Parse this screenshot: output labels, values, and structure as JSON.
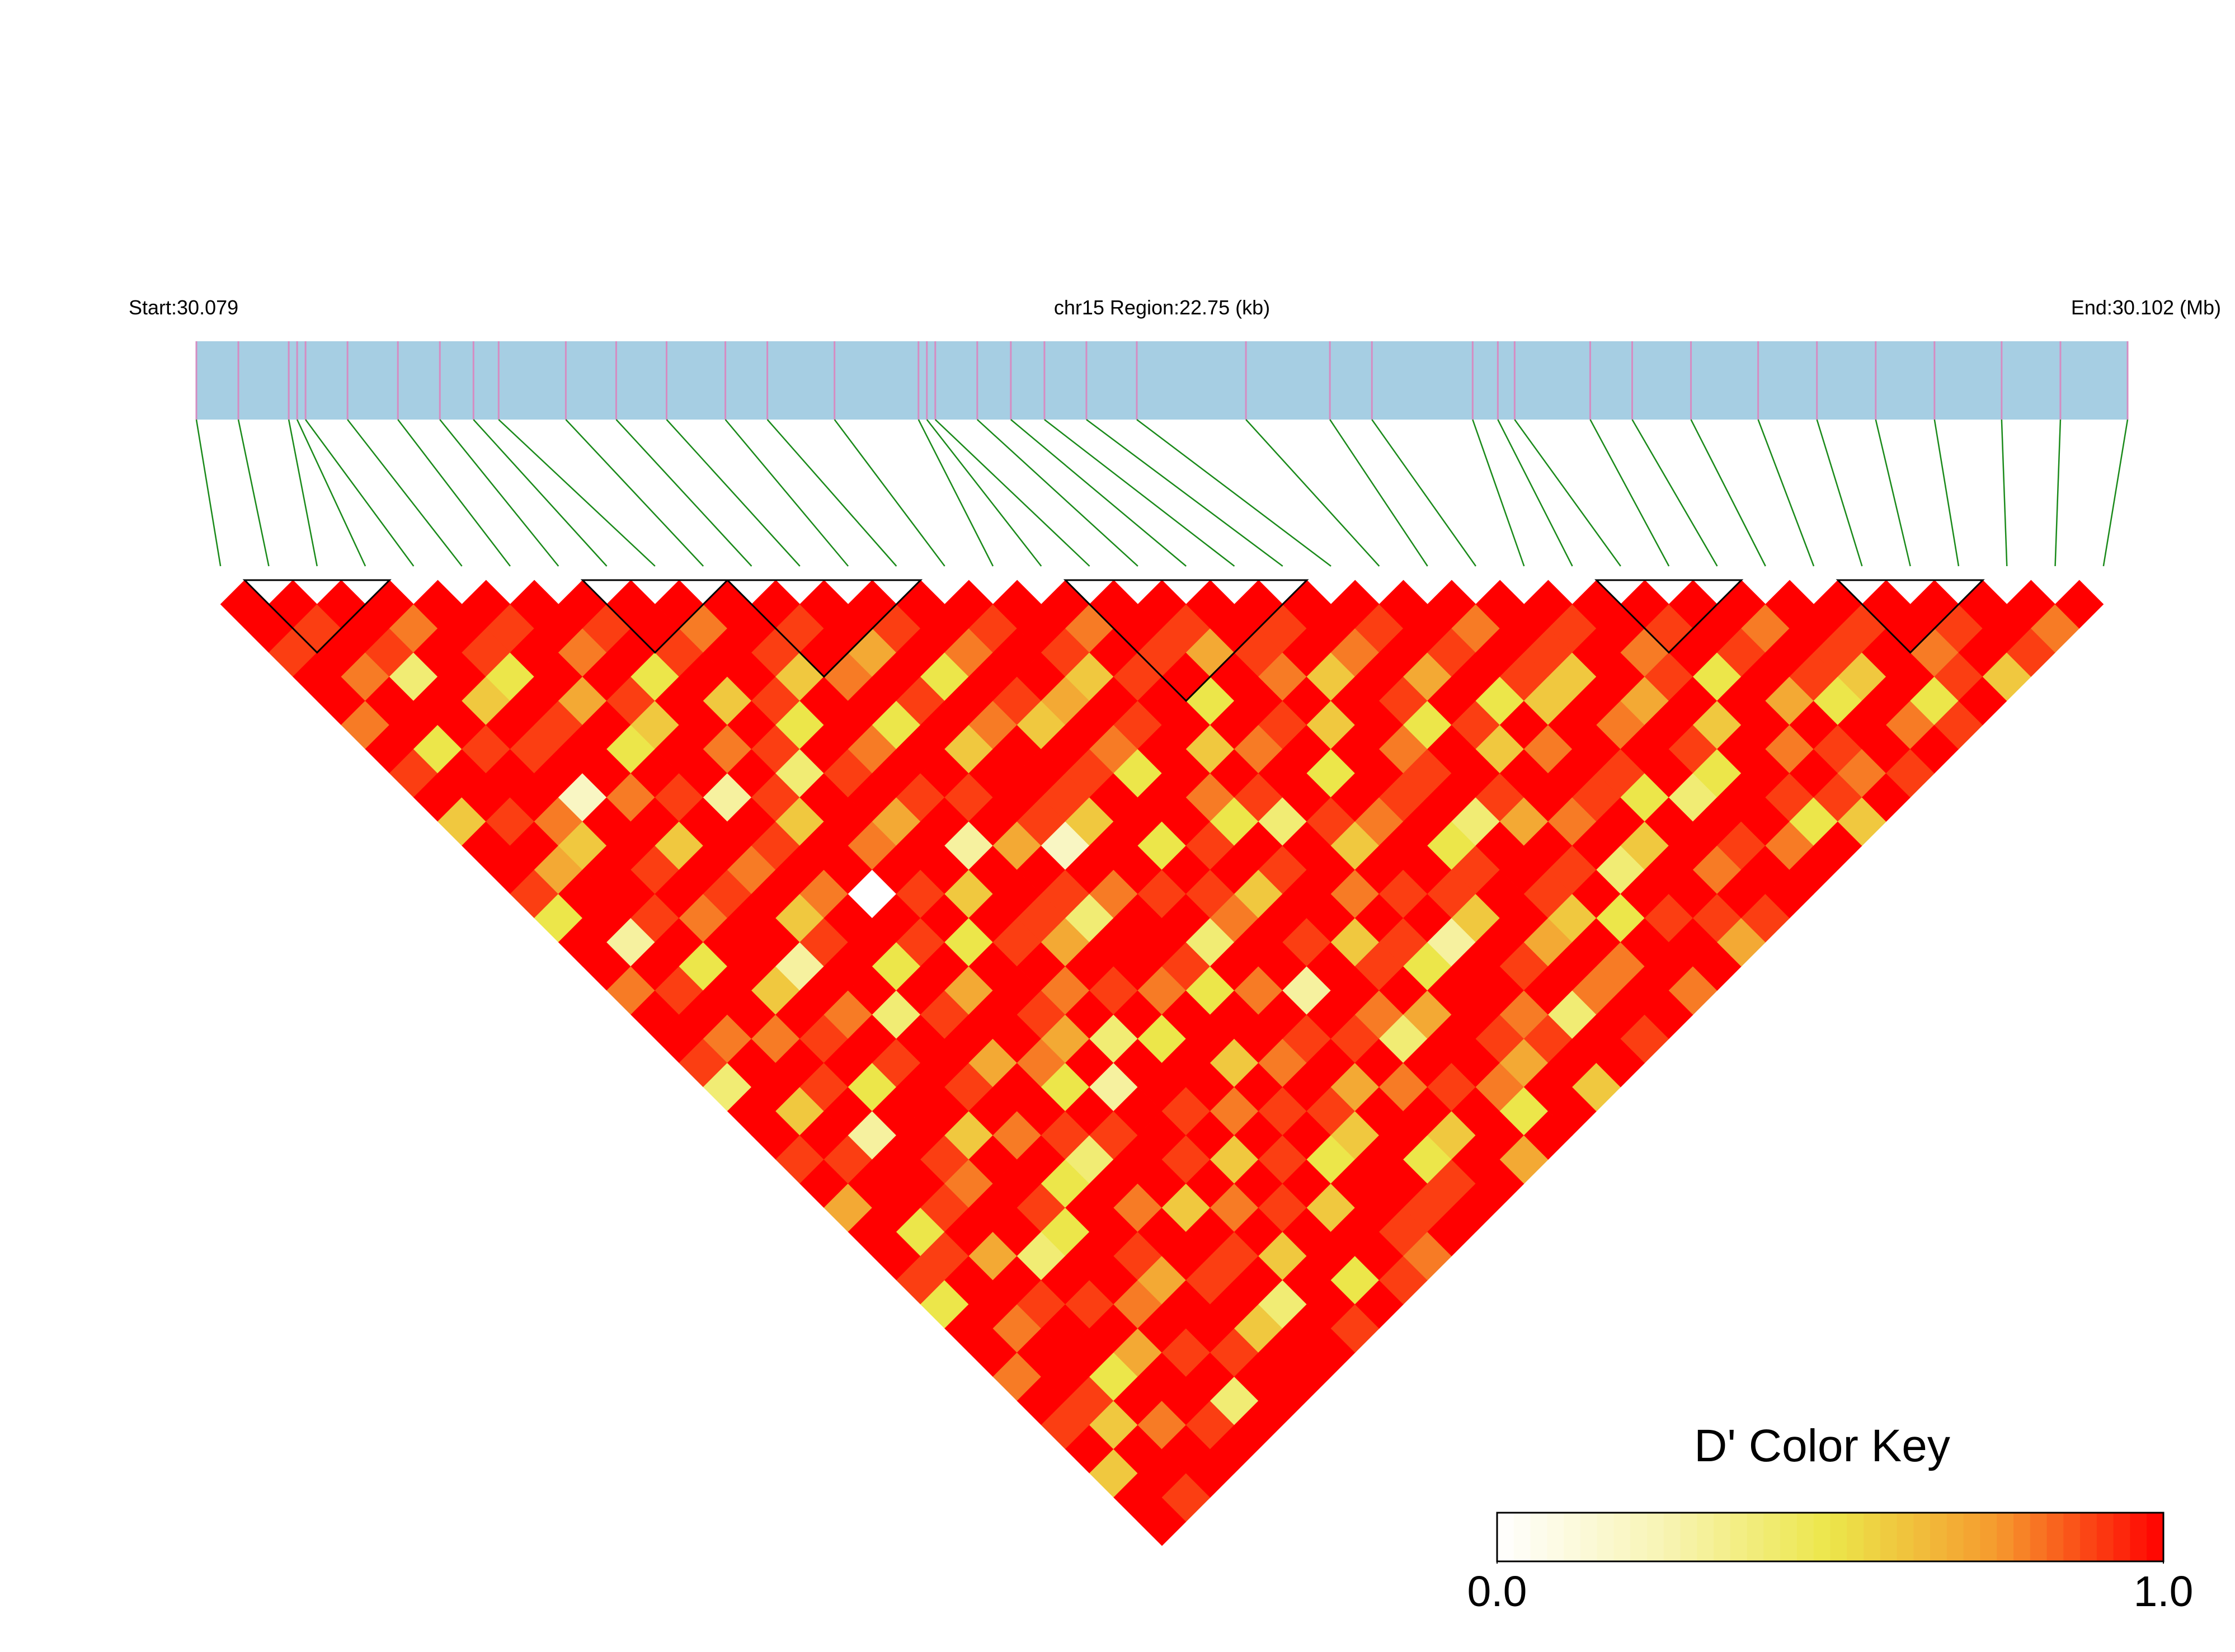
{
  "chart_data": {
    "type": "ld_heatmap",
    "start_label": "Start:30.079",
    "region_label": "chr15 Region:22.75 (kb)",
    "end_label": "End:30.102 (Mb)",
    "xlim": [
      30.079,
      30.102
    ],
    "snp_positions": [
      30.079,
      30.0795,
      30.0801,
      30.0802,
      30.0803,
      30.0808,
      30.0814,
      30.0819,
      30.0823,
      30.0826,
      30.0834,
      30.084,
      30.0846,
      30.0853,
      30.0858,
      30.0866,
      30.0876,
      30.0877,
      30.0878,
      30.0883,
      30.0887,
      30.0891,
      30.0896,
      30.0902,
      30.0915,
      30.0925,
      30.093,
      30.0942,
      30.0945,
      30.0947,
      30.0956,
      30.0961,
      30.0968,
      30.0976,
      30.0983,
      30.099,
      30.0997,
      30.1005,
      30.1012,
      30.102
    ],
    "bar_color": "#a6cee3",
    "snp_line_color": "#d58cc2",
    "connector_color": "#1a8a1a",
    "ld_matrix": [
      [
        1,
        1,
        0.9,
        1,
        1,
        0.8,
        1,
        0.9,
        1,
        0.6,
        1,
        1,
        0.9,
        0.5,
        1,
        1,
        0.8,
        1,
        1,
        0.9,
        0.4,
        1,
        1,
        0.9,
        1,
        0.7,
        1,
        1,
        0.9,
        0.5,
        1,
        1,
        0.8,
        1,
        0.9,
        1,
        0.6,
        1,
        1
      ],
      [
        1,
        0.9,
        1,
        0.8,
        1,
        1,
        0.5,
        1,
        1,
        0.9,
        1,
        0.7,
        1,
        1,
        0.3,
        1,
        0.9,
        1,
        0.8,
        1,
        1,
        0.6,
        1,
        0.9,
        1,
        1,
        0.5,
        0.9,
        1,
        1,
        0.8,
        1,
        1,
        0.9,
        0.6,
        1,
        1,
        0.9
      ],
      [
        1,
        1,
        0.9,
        0.4,
        1,
        1,
        0.9,
        1,
        1,
        0.8,
        0.6,
        1,
        1,
        0.9,
        1,
        0.5,
        1,
        1,
        0.8,
        1,
        0.9,
        1,
        0.3,
        1,
        1,
        0.9,
        1,
        0.7,
        1,
        0.9,
        1,
        1,
        0.5,
        1,
        0.8,
        1,
        1
      ],
      [
        1,
        0.8,
        1,
        1,
        0.6,
        1,
        0.9,
        1,
        0.2,
        1,
        1,
        0.9,
        1,
        0.8,
        1,
        1,
        0.6,
        1,
        0.9,
        1,
        0.5,
        1,
        1,
        0.9,
        0.8,
        1,
        1,
        0.4,
        1,
        0.9,
        1,
        0.7,
        1,
        1,
        0.9,
        1
      ],
      [
        1,
        1,
        0.9,
        0.5,
        1,
        0.9,
        1,
        1,
        0.8,
        1,
        0.6,
        1,
        0.9,
        1,
        1,
        0.3,
        1,
        0.8,
        1,
        0.9,
        1,
        1,
        0.6,
        1,
        1,
        0.9,
        0.5,
        1,
        1,
        0.8,
        1,
        0.9,
        1,
        0.4,
        1
      ],
      [
        1,
        0.9,
        1,
        1,
        0.7,
        1,
        0.5,
        1,
        0.9,
        1,
        1,
        0.8,
        1,
        0.6,
        0.9,
        1,
        1,
        0.4,
        1,
        1,
        0.9,
        1,
        0.8,
        1,
        0.5,
        1,
        1,
        0.9,
        0.7,
        1,
        1,
        0.9,
        1,
        1
      ],
      [
        1,
        1,
        0.8,
        1,
        0.9,
        0.6,
        1,
        1,
        0.3,
        1,
        0.9,
        1,
        0.8,
        1,
        1,
        0.5,
        1,
        0.9,
        1,
        0.7,
        1,
        1,
        0.9,
        0.4,
        1,
        0.8,
        1,
        1,
        0.9,
        1,
        0.6,
        1,
        1
      ],
      [
        1,
        0.9,
        1,
        0.5,
        1,
        1,
        0.8,
        1,
        0.9,
        0.6,
        1,
        1,
        0,
        1,
        0.9,
        1,
        0.7,
        1,
        1,
        0.8,
        0.5,
        1,
        0.9,
        1,
        1,
        0.6,
        1,
        0.9,
        1,
        0.4,
        1,
        1
      ],
      [
        1,
        1,
        0.9,
        1,
        0.6,
        1,
        0.9,
        0.4,
        1,
        1,
        0.8,
        1,
        0.9,
        1,
        0.5,
        1,
        1,
        0.9,
        0.7,
        1,
        0.3,
        1,
        1,
        0.9,
        1,
        0.8,
        1,
        0.6,
        1,
        1,
        0.9
      ],
      [
        1,
        0.8,
        1,
        1,
        0.9,
        0.5,
        1,
        0.9,
        1,
        0.7,
        1,
        1,
        0.6,
        1,
        0.9,
        1,
        0.8,
        1,
        0.4,
        1,
        1,
        0.9,
        1,
        0.6,
        1,
        0.9,
        1,
        1,
        0.5,
        1
      ],
      [
        1,
        1,
        0.9,
        0.6,
        1,
        1,
        0.8,
        1,
        0.9,
        1,
        0.3,
        1,
        1,
        0.9,
        0.7,
        1,
        0.9,
        1,
        0.5,
        1,
        1,
        0.8,
        1,
        0.9,
        1,
        0.6,
        1,
        1,
        0.9
      ],
      [
        1,
        0.9,
        1,
        0.8,
        1,
        0.5,
        1,
        1,
        0.9,
        1,
        0.7,
        1,
        0.9,
        0.4,
        1,
        1,
        0.8,
        1,
        1,
        0.6,
        1,
        0.9,
        1,
        0.5,
        1,
        1,
        0.9,
        0.8
      ],
      [
        1,
        1,
        0.7,
        1,
        0.9,
        1,
        0.6,
        1,
        1,
        0.9,
        0.2,
        1,
        0.8,
        1,
        1,
        0.9,
        0.5,
        1,
        1,
        0.8,
        1,
        0.9,
        0.6,
        1,
        1,
        0.9,
        1
      ],
      [
        1,
        0.9,
        1,
        0.5,
        1,
        0.8,
        1,
        1,
        0.9,
        0.6,
        1,
        1,
        0.9,
        1,
        0.4,
        1,
        0.8,
        1,
        0.9,
        1,
        0.7,
        1,
        1,
        0.5,
        0.9,
        1
      ],
      [
        1,
        1,
        0.8,
        1,
        0.9,
        0.6,
        1,
        0.9,
        1,
        1,
        0.5,
        1,
        0.9,
        0.8,
        1,
        1,
        0.3,
        1,
        0.9,
        1,
        0.8,
        1,
        0.6,
        1,
        1
      ],
      [
        1,
        0.9,
        1,
        1,
        0.7,
        1,
        0.8,
        0.5,
        1,
        1,
        0.9,
        1,
        0.6,
        1,
        0.9,
        1,
        1,
        0.8,
        0.4,
        1,
        0.9,
        1,
        1,
        0.7
      ],
      [
        1,
        1,
        0.9,
        0.6,
        1,
        0.9,
        1,
        1,
        0.8,
        0.5,
        1,
        0.9,
        1,
        1,
        0.6,
        0.9,
        1,
        0.7,
        1,
        1,
        0.8,
        0.5,
        1
      ],
      [
        1,
        0.8,
        1,
        0.9,
        1,
        1,
        0.6,
        1,
        0.9,
        0.4,
        1,
        1,
        0.8,
        1,
        0.9,
        0.5,
        1,
        1,
        0.9,
        0.7,
        1,
        1
      ],
      [
        1,
        1,
        0.9,
        1,
        0.5,
        1,
        0.8,
        1,
        1,
        0.9,
        0.6,
        1,
        0.9,
        1,
        0.3,
        1,
        1,
        0.8,
        0.9,
        1,
        0.6
      ],
      [
        1,
        0.9,
        0.7,
        1,
        1,
        0.9,
        1,
        0.5,
        1,
        0.8,
        1,
        1,
        0.9,
        0.6,
        1,
        0.9,
        1,
        0.4,
        1,
        1
      ],
      [
        1,
        1,
        0.9,
        0.8,
        1,
        0.6,
        1,
        1,
        0.9,
        1,
        0.5,
        0.9,
        1,
        1,
        0.7,
        1,
        0.8,
        1,
        0.9
      ],
      [
        1,
        0.9,
        1,
        0.6,
        1,
        1,
        0.8,
        0.9,
        1,
        0.4,
        1,
        1,
        0.9,
        0.6,
        1,
        0.8,
        1,
        1
      ],
      [
        1,
        1,
        0.8,
        1,
        0.9,
        0.5,
        1,
        1,
        0.9,
        0.7,
        1,
        0.9,
        1,
        0.5,
        1,
        1,
        0.8
      ],
      [
        1,
        0.9,
        1,
        0.7,
        1,
        0.9,
        0.6,
        1,
        1,
        0.8,
        1,
        0.4,
        1,
        0.9,
        1,
        1
      ],
      [
        1,
        1,
        0.9,
        1,
        0.5,
        1,
        0.8,
        1,
        0.9,
        1,
        0.6,
        1,
        1,
        0.9,
        0.7
      ],
      [
        1,
        0.8,
        1,
        0.9,
        0.6,
        1,
        1,
        0.9,
        0.5,
        1,
        1,
        0.8,
        1,
        0.9
      ],
      [
        1,
        1,
        0.9,
        0.6,
        1,
        0.8,
        1,
        1,
        0.4,
        1,
        0.9,
        1,
        1
      ],
      [
        1,
        0.9,
        1,
        1,
        0.7,
        1,
        0.9,
        0.5,
        1,
        1,
        0.8,
        1
      ],
      [
        1,
        1,
        0.8,
        0.9,
        1,
        0.6,
        1,
        1,
        0.9,
        0.5,
        1
      ],
      [
        1,
        0.9,
        1,
        0.5,
        1,
        1,
        0.8,
        1,
        0.9,
        0.6
      ],
      [
        1,
        1,
        0.9,
        1,
        0.7,
        1,
        0.9,
        0.8,
        1
      ],
      [
        1,
        0.8,
        1,
        0.9,
        0.5,
        1,
        1,
        0.9
      ],
      [
        1,
        1,
        0.9,
        0.6,
        1,
        0.8,
        1
      ],
      [
        1,
        0.9,
        1,
        1,
        0.5,
        0.9
      ],
      [
        1,
        1,
        0.8,
        0.9,
        1
      ],
      [
        1,
        0.9,
        1,
        0.6
      ],
      [
        1,
        1,
        0.9
      ],
      [
        1,
        0.8
      ],
      [
        1
      ]
    ],
    "blocks": [
      [
        1,
        3
      ],
      [
        8,
        10
      ],
      [
        11,
        14
      ],
      [
        18,
        22
      ],
      [
        29,
        31
      ],
      [
        34,
        36
      ]
    ],
    "color_scale": [
      "#ffffff",
      "#f8f4b4",
      "#ece64a",
      "#f59a2e",
      "#ff0000"
    ],
    "key_title": "D' Color Key",
    "color_lim": [
      0,
      1
    ],
    "key_ticks": [
      {
        "value": 0,
        "label": "0.0"
      },
      {
        "value": 1,
        "label": "1.0"
      }
    ]
  }
}
